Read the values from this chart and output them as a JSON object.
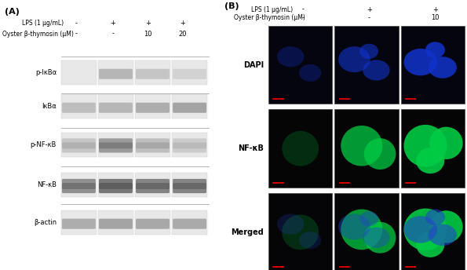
{
  "background_color": "#ffffff",
  "panel_A": {
    "label": "(A)",
    "lps_label": "LPS (1 μg/mL)",
    "thymosin_label": "Oyster β-thymosin (μM)",
    "lps_values": [
      "-",
      "+",
      "+",
      "+"
    ],
    "thymosin_values": [
      "-",
      "-",
      "10",
      "20"
    ],
    "bands": [
      {
        "name": "p-IκBα",
        "intensities": [
          0.05,
          0.55,
          0.45,
          0.35
        ]
      },
      {
        "name": "IκBα",
        "intensities": [
          0.5,
          0.55,
          0.6,
          0.65
        ]
      },
      {
        "name": "p-NF-κB",
        "intensities": [
          0.45,
          0.7,
          0.5,
          0.4
        ]
      },
      {
        "name": "NF-κB",
        "intensities": [
          0.75,
          0.85,
          0.8,
          0.8
        ]
      },
      {
        "name": "β-actin",
        "intensities": [
          0.6,
          0.65,
          0.63,
          0.62
        ]
      }
    ]
  },
  "panel_B": {
    "label": "(B)",
    "lps_label": "LPS (1 μg/mL)",
    "thymosin_label": "Oyster β-thymosin (μM)",
    "lps_values": [
      "-",
      "+",
      "+"
    ],
    "thymosin_values": [
      "-",
      "-",
      "10"
    ],
    "row_labels": [
      "DAPI",
      "NF-κB",
      "Merged"
    ],
    "dapi_intensities": [
      0.3,
      0.6,
      0.85
    ],
    "nfkb_intensities": [
      0.2,
      0.75,
      0.9
    ]
  }
}
